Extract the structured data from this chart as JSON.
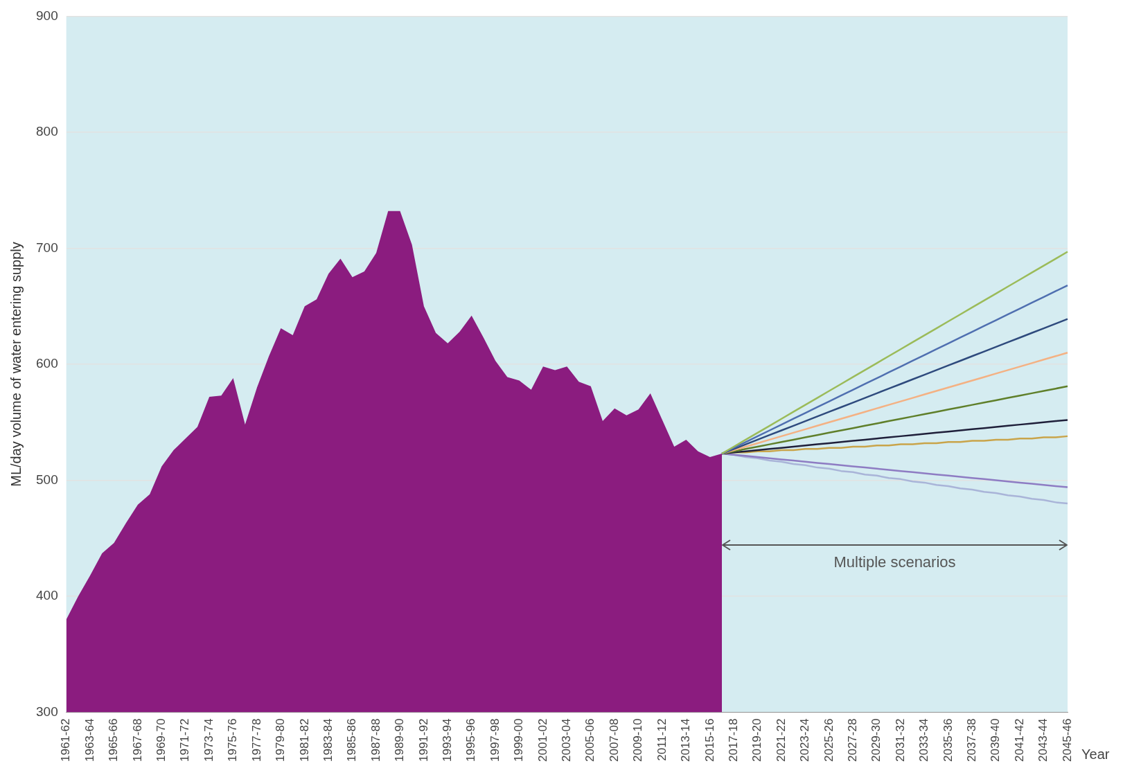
{
  "chart_data": {
    "type": "area",
    "ylabel": "ML/day volume of water entering supply",
    "xlabel": "Year",
    "categories": [
      "1961-62",
      null,
      "1963-64",
      null,
      "1965-66",
      null,
      "1967-68",
      null,
      "1969-70",
      null,
      "1971-72",
      null,
      "1973-74",
      null,
      "1975-76",
      null,
      "1977-78",
      null,
      "1979-80",
      null,
      "1981-82",
      null,
      "1983-84",
      null,
      "1985-86",
      null,
      "1987-88",
      null,
      "1989-90",
      null,
      "1991-92",
      null,
      "1993-94",
      null,
      "1995-96",
      null,
      "1997-98",
      null,
      "1999-00",
      null,
      "2001-02",
      null,
      "2003-04",
      null,
      "2005-06",
      null,
      "2007-08",
      null,
      "2009-10",
      null,
      "2011-12",
      null,
      "2013-14",
      null,
      "2015-16",
      null,
      "2017-18",
      null,
      "2019-20",
      null,
      "2021-22",
      null,
      "2023-24",
      null,
      "2025-26",
      null,
      "2027-28",
      null,
      "2029-30",
      null,
      "2031-32",
      null,
      "2033-34",
      null,
      "2035-36",
      null,
      "2037-38",
      null,
      "2039-40",
      null,
      "2041-42",
      null,
      "2043-44",
      null,
      "2045-46"
    ],
    "series": [
      {
        "color": "#8b1c7f",
        "values": [
          380,
          400,
          418,
          437,
          446,
          463,
          479,
          488,
          512,
          526,
          536,
          546,
          572,
          573,
          588,
          548,
          580,
          607,
          631,
          625,
          650,
          656,
          678,
          691,
          675,
          680,
          696,
          732,
          732,
          703,
          650,
          627,
          618,
          628,
          642,
          623,
          603,
          589,
          586,
          578,
          598,
          595,
          598,
          585,
          581,
          551,
          562,
          556,
          561,
          575,
          552,
          529,
          535,
          525,
          520,
          523,
          null,
          null,
          null,
          null,
          null,
          null,
          null,
          null,
          null,
          null,
          null,
          null,
          null,
          null,
          null,
          null,
          null,
          null,
          null,
          null,
          null,
          null,
          null,
          null,
          null,
          null,
          null,
          null,
          null
        ]
      },
      {
        "type": "line",
        "color": "#9bbb59",
        "values": [
          null,
          null,
          null,
          null,
          null,
          null,
          null,
          null,
          null,
          null,
          null,
          null,
          null,
          null,
          null,
          null,
          null,
          null,
          null,
          null,
          null,
          null,
          null,
          null,
          null,
          null,
          null,
          null,
          null,
          null,
          null,
          null,
          null,
          null,
          null,
          null,
          null,
          null,
          null,
          null,
          null,
          null,
          null,
          null,
          null,
          null,
          null,
          null,
          null,
          null,
          null,
          null,
          null,
          null,
          null,
          523,
          529,
          535,
          541,
          547,
          553,
          559,
          565,
          571,
          577,
          583,
          589,
          595,
          601,
          607,
          613,
          619,
          625,
          631,
          637,
          643,
          649,
          655,
          661,
          667,
          673,
          679,
          685,
          691,
          697
        ]
      },
      {
        "type": "line",
        "color": "#4f6fb0",
        "values": [
          null,
          null,
          null,
          null,
          null,
          null,
          null,
          null,
          null,
          null,
          null,
          null,
          null,
          null,
          null,
          null,
          null,
          null,
          null,
          null,
          null,
          null,
          null,
          null,
          null,
          null,
          null,
          null,
          null,
          null,
          null,
          null,
          null,
          null,
          null,
          null,
          null,
          null,
          null,
          null,
          null,
          null,
          null,
          null,
          null,
          null,
          null,
          null,
          null,
          null,
          null,
          null,
          null,
          null,
          null,
          523,
          528,
          533,
          538,
          543,
          548,
          553,
          558,
          563,
          568,
          573,
          578,
          583,
          588,
          593,
          598,
          603,
          608,
          613,
          618,
          623,
          628,
          633,
          638,
          643,
          648,
          653,
          658,
          663,
          668
        ]
      },
      {
        "type": "line",
        "color": "#2e4a7d",
        "values": [
          null,
          null,
          null,
          null,
          null,
          null,
          null,
          null,
          null,
          null,
          null,
          null,
          null,
          null,
          null,
          null,
          null,
          null,
          null,
          null,
          null,
          null,
          null,
          null,
          null,
          null,
          null,
          null,
          null,
          null,
          null,
          null,
          null,
          null,
          null,
          null,
          null,
          null,
          null,
          null,
          null,
          null,
          null,
          null,
          null,
          null,
          null,
          null,
          null,
          null,
          null,
          null,
          null,
          null,
          null,
          523,
          527,
          531,
          535,
          539,
          543,
          547,
          551,
          555,
          559,
          563,
          567,
          571,
          575,
          579,
          583,
          587,
          591,
          595,
          599,
          603,
          607,
          611,
          615,
          619,
          623,
          627,
          631,
          635,
          639
        ]
      },
      {
        "type": "line",
        "color": "#f4b183",
        "values": [
          null,
          null,
          null,
          null,
          null,
          null,
          null,
          null,
          null,
          null,
          null,
          null,
          null,
          null,
          null,
          null,
          null,
          null,
          null,
          null,
          null,
          null,
          null,
          null,
          null,
          null,
          null,
          null,
          null,
          null,
          null,
          null,
          null,
          null,
          null,
          null,
          null,
          null,
          null,
          null,
          null,
          null,
          null,
          null,
          null,
          null,
          null,
          null,
          null,
          null,
          null,
          null,
          null,
          null,
          null,
          523,
          526,
          529,
          532,
          535,
          538,
          541,
          544,
          547,
          550,
          553,
          556,
          559,
          562,
          565,
          568,
          571,
          574,
          577,
          580,
          583,
          586,
          589,
          592,
          595,
          598,
          601,
          604,
          607,
          610
        ]
      },
      {
        "type": "line",
        "color": "#5f7f2a",
        "values": [
          null,
          null,
          null,
          null,
          null,
          null,
          null,
          null,
          null,
          null,
          null,
          null,
          null,
          null,
          null,
          null,
          null,
          null,
          null,
          null,
          null,
          null,
          null,
          null,
          null,
          null,
          null,
          null,
          null,
          null,
          null,
          null,
          null,
          null,
          null,
          null,
          null,
          null,
          null,
          null,
          null,
          null,
          null,
          null,
          null,
          null,
          null,
          null,
          null,
          null,
          null,
          null,
          null,
          null,
          null,
          523,
          525,
          527,
          529,
          531,
          533,
          535,
          537,
          539,
          541,
          543,
          545,
          547,
          549,
          551,
          553,
          555,
          557,
          559,
          561,
          563,
          565,
          567,
          569,
          571,
          573,
          575,
          577,
          579,
          581
        ]
      },
      {
        "type": "line",
        "color": "#1f1f3a",
        "values": [
          null,
          null,
          null,
          null,
          null,
          null,
          null,
          null,
          null,
          null,
          null,
          null,
          null,
          null,
          null,
          null,
          null,
          null,
          null,
          null,
          null,
          null,
          null,
          null,
          null,
          null,
          null,
          null,
          null,
          null,
          null,
          null,
          null,
          null,
          null,
          null,
          null,
          null,
          null,
          null,
          null,
          null,
          null,
          null,
          null,
          null,
          null,
          null,
          null,
          null,
          null,
          null,
          null,
          null,
          null,
          523,
          524,
          525,
          526,
          527,
          528,
          529,
          530,
          531,
          532,
          533,
          534,
          535,
          536,
          537,
          538,
          539,
          540,
          541,
          542,
          543,
          544,
          545,
          546,
          547,
          548,
          549,
          550,
          551,
          552
        ]
      },
      {
        "type": "line",
        "color": "#c9a44a",
        "values": [
          null,
          null,
          null,
          null,
          null,
          null,
          null,
          null,
          null,
          null,
          null,
          null,
          null,
          null,
          null,
          null,
          null,
          null,
          null,
          null,
          null,
          null,
          null,
          null,
          null,
          null,
          null,
          null,
          null,
          null,
          null,
          null,
          null,
          null,
          null,
          null,
          null,
          null,
          null,
          null,
          null,
          null,
          null,
          null,
          null,
          null,
          null,
          null,
          null,
          null,
          null,
          null,
          null,
          null,
          null,
          523,
          524,
          524,
          525,
          525,
          526,
          526,
          527,
          527,
          528,
          528,
          529,
          529,
          530,
          530,
          531,
          531,
          532,
          532,
          533,
          533,
          534,
          534,
          535,
          535,
          536,
          536,
          537,
          537,
          538
        ]
      },
      {
        "type": "line",
        "color": "#8e7cc3",
        "values": [
          null,
          null,
          null,
          null,
          null,
          null,
          null,
          null,
          null,
          null,
          null,
          null,
          null,
          null,
          null,
          null,
          null,
          null,
          null,
          null,
          null,
          null,
          null,
          null,
          null,
          null,
          null,
          null,
          null,
          null,
          null,
          null,
          null,
          null,
          null,
          null,
          null,
          null,
          null,
          null,
          null,
          null,
          null,
          null,
          null,
          null,
          null,
          null,
          null,
          null,
          null,
          null,
          null,
          null,
          null,
          523,
          522,
          521,
          520,
          519,
          518,
          517,
          516,
          515,
          514,
          513,
          512,
          511,
          510,
          509,
          508,
          507,
          506,
          505,
          504,
          503,
          502,
          501,
          500,
          499,
          498,
          497,
          496,
          495,
          494
        ]
      },
      {
        "type": "line",
        "color": "#a9b4d8",
        "values": [
          null,
          null,
          null,
          null,
          null,
          null,
          null,
          null,
          null,
          null,
          null,
          null,
          null,
          null,
          null,
          null,
          null,
          null,
          null,
          null,
          null,
          null,
          null,
          null,
          null,
          null,
          null,
          null,
          null,
          null,
          null,
          null,
          null,
          null,
          null,
          null,
          null,
          null,
          null,
          null,
          null,
          null,
          null,
          null,
          null,
          null,
          null,
          null,
          null,
          null,
          null,
          null,
          null,
          null,
          null,
          523,
          522,
          520,
          519,
          517,
          516,
          514,
          513,
          511,
          510,
          508,
          507,
          505,
          504,
          502,
          501,
          499,
          498,
          496,
          495,
          493,
          492,
          490,
          489,
          487,
          486,
          484,
          483,
          481,
          480
        ]
      }
    ],
    "ylim": [
      300,
      900
    ],
    "yticks": [
      300,
      400,
      500,
      600,
      700,
      800,
      900
    ],
    "grid": "y",
    "annotations": [
      "Multiple scenarios"
    ]
  }
}
